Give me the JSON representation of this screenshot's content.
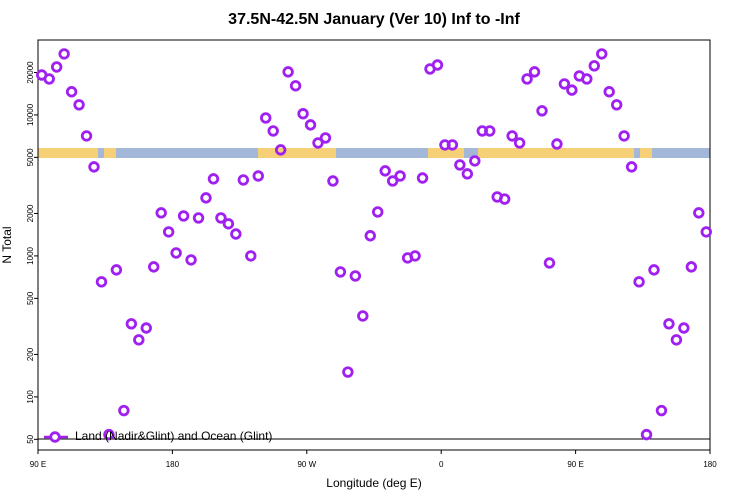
{
  "chart_data": {
    "type": "scatter",
    "title": "37.5N-42.5N January (Ver 10)   Inf to -Inf",
    "x_label": "Longitude (deg E)",
    "y_label": "N Total",
    "ylog": true,
    "legend_position": "bottom-left",
    "xlim": [
      90,
      540
    ],
    "xticks": [
      {
        "value": 90,
        "label": "90 E"
      },
      {
        "value": 180,
        "label": "180"
      },
      {
        "value": 270,
        "label": "90 W"
      },
      {
        "value": 360,
        "label": "0"
      },
      {
        "value": 450,
        "label": "90 E"
      },
      {
        "value": 540,
        "label": "180"
      }
    ],
    "ylim": [
      42,
      34000
    ],
    "yticks": [
      50,
      100,
      200,
      500,
      1000,
      2000,
      5000,
      10000,
      20000
    ],
    "series": [
      {
        "name": "Land (Nadir&Glint) and Ocean (Glint)",
        "color": "#a020f0",
        "x": [
          92.5,
          97.5,
          102.5,
          107.5,
          112.5,
          117.5,
          122.5,
          127.5,
          132.5,
          137.5,
          142.5,
          147.5,
          152.5,
          157.5,
          162.5,
          167.5,
          172.5,
          177.5,
          182.5,
          187.5,
          192.5,
          197.5,
          202.5,
          207.5,
          212.5,
          217.5,
          222.5,
          227.5,
          232.5,
          237.5,
          242.5,
          247.5,
          252.5,
          257.5,
          262.5,
          267.5,
          272.5,
          277.5,
          282.5,
          287.5,
          292.5,
          297.5,
          302.5,
          307.5,
          312.5,
          317.5,
          322.5,
          327.5,
          332.5,
          337.5,
          342.5,
          347.5,
          352.5,
          357.5,
          362.5,
          367.5,
          372.5,
          377.5,
          382.5,
          387.5,
          392.5,
          397.5,
          402.5,
          407.5,
          412.5,
          417.5,
          422.5,
          427.5,
          432.5,
          437.5,
          442.5,
          447.5,
          452.5,
          457.5,
          462.5,
          467.5,
          472.5,
          477.5,
          482.5,
          487.5,
          492.5,
          497.5,
          502.5,
          507.5,
          512.5,
          517.5,
          522.5,
          527.5,
          532.5,
          537.5
        ],
        "values": [
          19200,
          18000,
          21900,
          27100,
          14600,
          11800,
          7100,
          4280,
          655,
          54,
          796,
          80,
          330,
          254,
          308,
          836,
          2020,
          1480,
          1050,
          1920,
          937,
          1860,
          2580,
          3520,
          1860,
          1690,
          1430,
          3460,
          1000,
          3690,
          9520,
          7700,
          5650,
          20200,
          16100,
          10200,
          8500,
          6330,
          6870,
          3400,
          770,
          150,
          721,
          375,
          1390,
          2050,
          4010,
          3400,
          3690,
          968,
          1000,
          3570,
          21200,
          22600,
          6130,
          6130,
          4420,
          3820,
          4720,
          7700,
          7700,
          2620,
          2530,
          7100,
          6330,
          18000,
          20200,
          10700,
          891,
          6220,
          16600,
          15000,
          18900,
          18000,
          22300,
          27100,
          14600,
          11800,
          7100,
          4280,
          655,
          54,
          796,
          80,
          330,
          254,
          308,
          836,
          2020,
          1480
        ]
      }
    ]
  }
}
